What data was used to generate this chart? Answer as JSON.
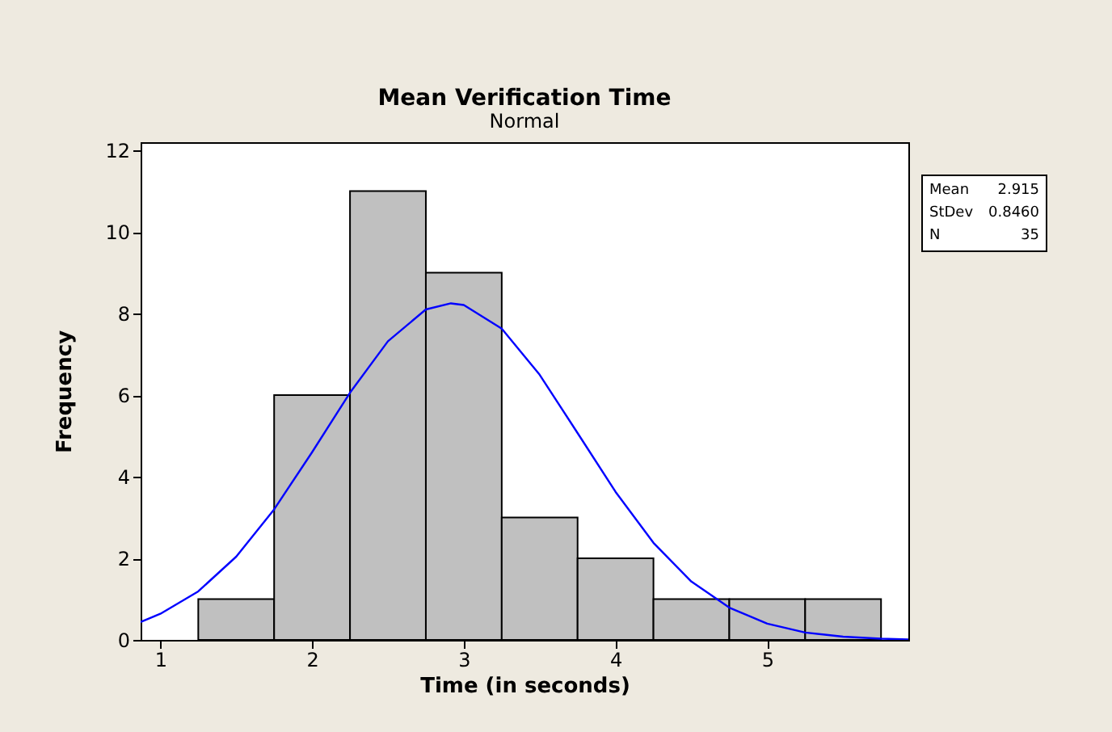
{
  "chart_data": {
    "type": "histogram",
    "title": "Mean Verification Time",
    "subtitle": "Normal",
    "xlabel": "Time (in seconds)",
    "ylabel": "Frequency",
    "bins": [
      1.25,
      1.75,
      2.25,
      2.75,
      3.25,
      3.75,
      4.25,
      4.75,
      5.25,
      5.75
    ],
    "values": [
      1,
      6,
      11,
      9,
      3,
      2,
      1,
      1,
      1
    ],
    "color": "#c0c0c0",
    "series": [
      {
        "type": "line",
        "color": "#0000ff",
        "x": [
          0.87,
          1.0,
          1.25,
          1.5,
          1.75,
          2.0,
          2.25,
          2.5,
          2.75,
          2.915,
          3.0,
          3.25,
          3.5,
          3.75,
          4.0,
          4.25,
          4.5,
          4.75,
          5.0,
          5.25,
          5.5,
          5.75,
          5.93
        ],
        "values": [
          0.44,
          0.64,
          1.19,
          2.04,
          3.2,
          4.6,
          6.06,
          7.32,
          8.1,
          8.25,
          8.21,
          7.63,
          6.5,
          5.07,
          3.63,
          2.38,
          1.43,
          0.79,
          0.4,
          0.18,
          0.08,
          0.03,
          0.01
        ]
      }
    ],
    "xlim": [
      0.87,
      5.93
    ],
    "xticks": [
      1,
      2,
      3,
      4,
      5
    ],
    "ylim": [
      0,
      12.2
    ],
    "yticks": [
      0,
      2,
      4,
      6,
      8,
      10,
      12
    ],
    "grid": false,
    "annotations": [
      "Mean",
      "2.915",
      "StDev",
      "0.8460",
      "N",
      "35"
    ]
  }
}
